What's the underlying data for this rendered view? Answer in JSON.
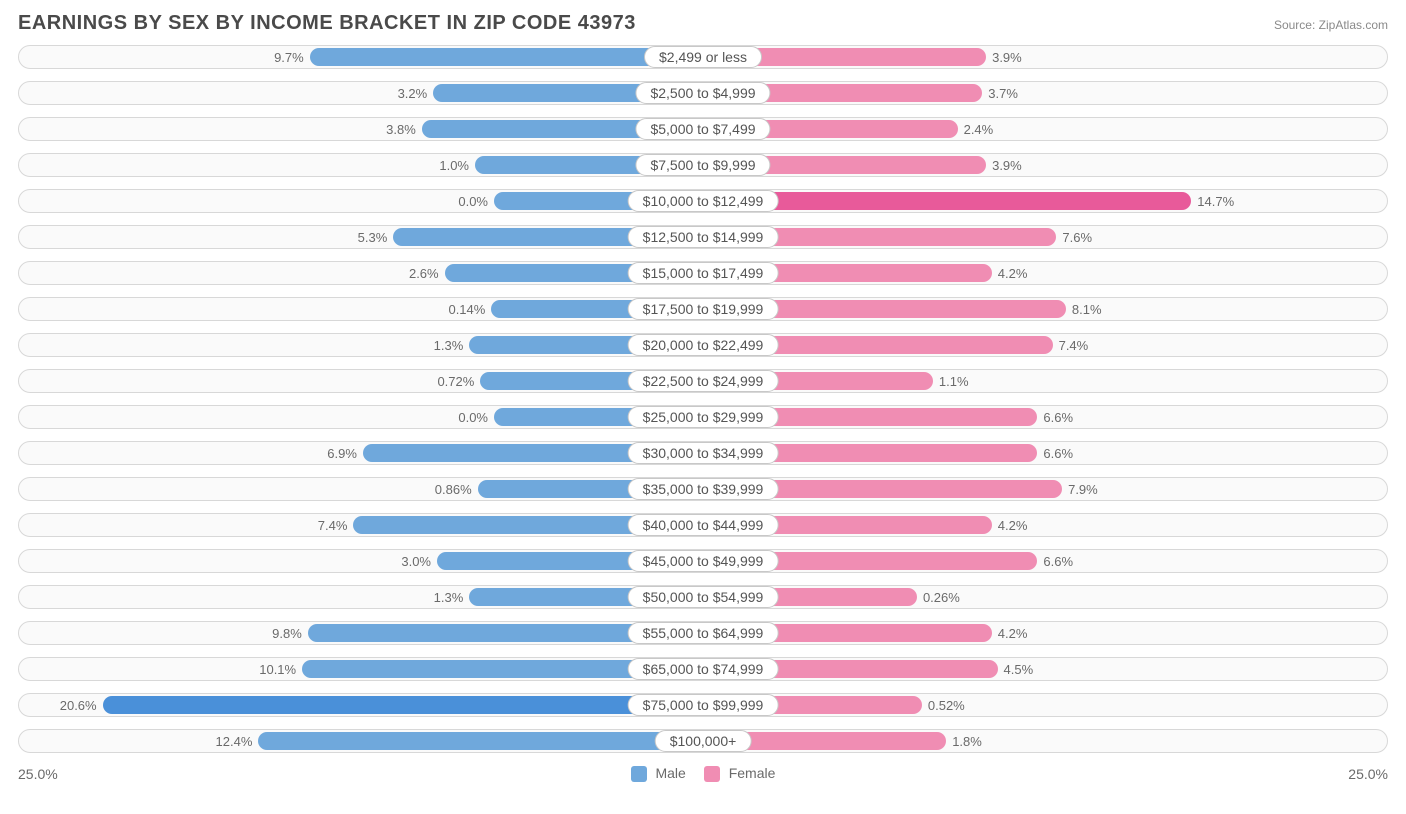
{
  "title": "EARNINGS BY SEX BY INCOME BRACKET IN ZIP CODE 43973",
  "source": "Source: ZipAtlas.com",
  "axis_max_pct": 25.0,
  "axis_left_label": "25.0%",
  "axis_right_label": "25.0%",
  "legend": {
    "male": {
      "label": "Male",
      "color": "#6fa8dc"
    },
    "female": {
      "label": "Female",
      "color": "#f08db3"
    }
  },
  "colors": {
    "male_bar": "#6fa8dc",
    "male_bar_hi": "#4a90d9",
    "female_bar": "#f08db3",
    "female_bar_hi": "#e85a9a",
    "row_bg": "#fafafa",
    "row_border": "#d8d8d8",
    "label_bg": "#ffffff",
    "label_border": "#c8c8c8",
    "text": "#6a6a6a",
    "title_text": "#4a4a4a"
  },
  "label_offset_pct": 11.0,
  "rows": [
    {
      "label": "$2,499 or less",
      "male": 9.7,
      "male_txt": "9.7%",
      "female": 3.9,
      "female_txt": "3.9%"
    },
    {
      "label": "$2,500 to $4,999",
      "male": 3.2,
      "male_txt": "3.2%",
      "female": 3.7,
      "female_txt": "3.7%"
    },
    {
      "label": "$5,000 to $7,499",
      "male": 3.8,
      "male_txt": "3.8%",
      "female": 2.4,
      "female_txt": "2.4%"
    },
    {
      "label": "$7,500 to $9,999",
      "male": 1.0,
      "male_txt": "1.0%",
      "female": 3.9,
      "female_txt": "3.9%"
    },
    {
      "label": "$10,000 to $12,499",
      "male": 0.0,
      "male_txt": "0.0%",
      "female": 14.7,
      "female_txt": "14.7%",
      "female_hi": true
    },
    {
      "label": "$12,500 to $14,999",
      "male": 5.3,
      "male_txt": "5.3%",
      "female": 7.6,
      "female_txt": "7.6%"
    },
    {
      "label": "$15,000 to $17,499",
      "male": 2.6,
      "male_txt": "2.6%",
      "female": 4.2,
      "female_txt": "4.2%"
    },
    {
      "label": "$17,500 to $19,999",
      "male": 0.14,
      "male_txt": "0.14%",
      "female": 8.1,
      "female_txt": "8.1%"
    },
    {
      "label": "$20,000 to $22,499",
      "male": 1.3,
      "male_txt": "1.3%",
      "female": 7.4,
      "female_txt": "7.4%"
    },
    {
      "label": "$22,500 to $24,999",
      "male": 0.72,
      "male_txt": "0.72%",
      "female": 1.1,
      "female_txt": "1.1%"
    },
    {
      "label": "$25,000 to $29,999",
      "male": 0.0,
      "male_txt": "0.0%",
      "female": 6.6,
      "female_txt": "6.6%"
    },
    {
      "label": "$30,000 to $34,999",
      "male": 6.9,
      "male_txt": "6.9%",
      "female": 6.6,
      "female_txt": "6.6%"
    },
    {
      "label": "$35,000 to $39,999",
      "male": 0.86,
      "male_txt": "0.86%",
      "female": 7.9,
      "female_txt": "7.9%"
    },
    {
      "label": "$40,000 to $44,999",
      "male": 7.4,
      "male_txt": "7.4%",
      "female": 4.2,
      "female_txt": "4.2%"
    },
    {
      "label": "$45,000 to $49,999",
      "male": 3.0,
      "male_txt": "3.0%",
      "female": 6.6,
      "female_txt": "6.6%"
    },
    {
      "label": "$50,000 to $54,999",
      "male": 1.3,
      "male_txt": "1.3%",
      "female": 0.26,
      "female_txt": "0.26%"
    },
    {
      "label": "$55,000 to $64,999",
      "male": 9.8,
      "male_txt": "9.8%",
      "female": 4.2,
      "female_txt": "4.2%"
    },
    {
      "label": "$65,000 to $74,999",
      "male": 10.1,
      "male_txt": "10.1%",
      "female": 4.5,
      "female_txt": "4.5%"
    },
    {
      "label": "$75,000 to $99,999",
      "male": 20.6,
      "male_txt": "20.6%",
      "female": 0.52,
      "female_txt": "0.52%",
      "male_hi": true
    },
    {
      "label": "$100,000+",
      "male": 12.4,
      "male_txt": "12.4%",
      "female": 1.8,
      "female_txt": "1.8%"
    }
  ]
}
